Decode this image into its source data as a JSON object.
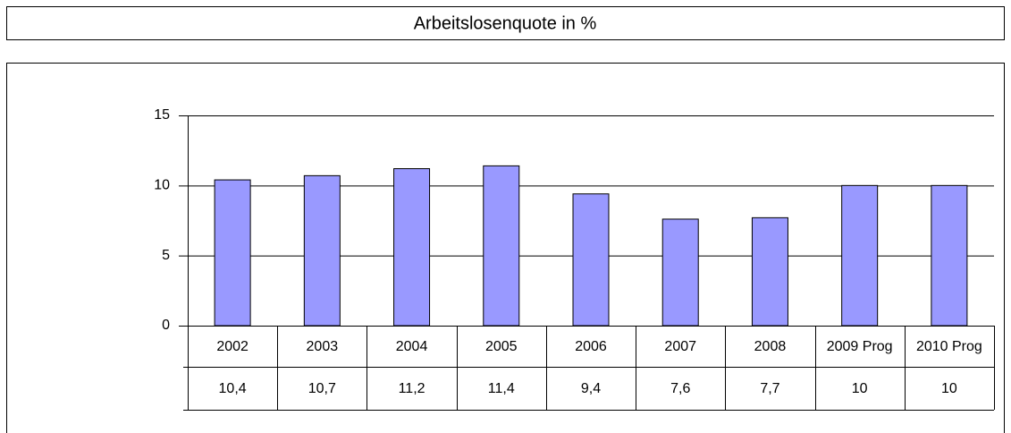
{
  "chart_data": {
    "type": "bar",
    "title": "Arbeitslosenquote in %",
    "categories": [
      "2002",
      "2003",
      "2004",
      "2005",
      "2006",
      "2007",
      "2008",
      "2009 Prog",
      "2010 Prog"
    ],
    "values": [
      10.4,
      10.7,
      11.2,
      11.4,
      9.4,
      7.6,
      7.7,
      10,
      10
    ],
    "value_labels": [
      "10,4",
      "10,7",
      "11,2",
      "11,4",
      "9,4",
      "7,6",
      "7,7",
      "10",
      "10"
    ],
    "color": "#9999ff",
    "ylim": [
      0,
      15
    ],
    "yticks": [
      0,
      5,
      10,
      15
    ],
    "grid": true
  }
}
